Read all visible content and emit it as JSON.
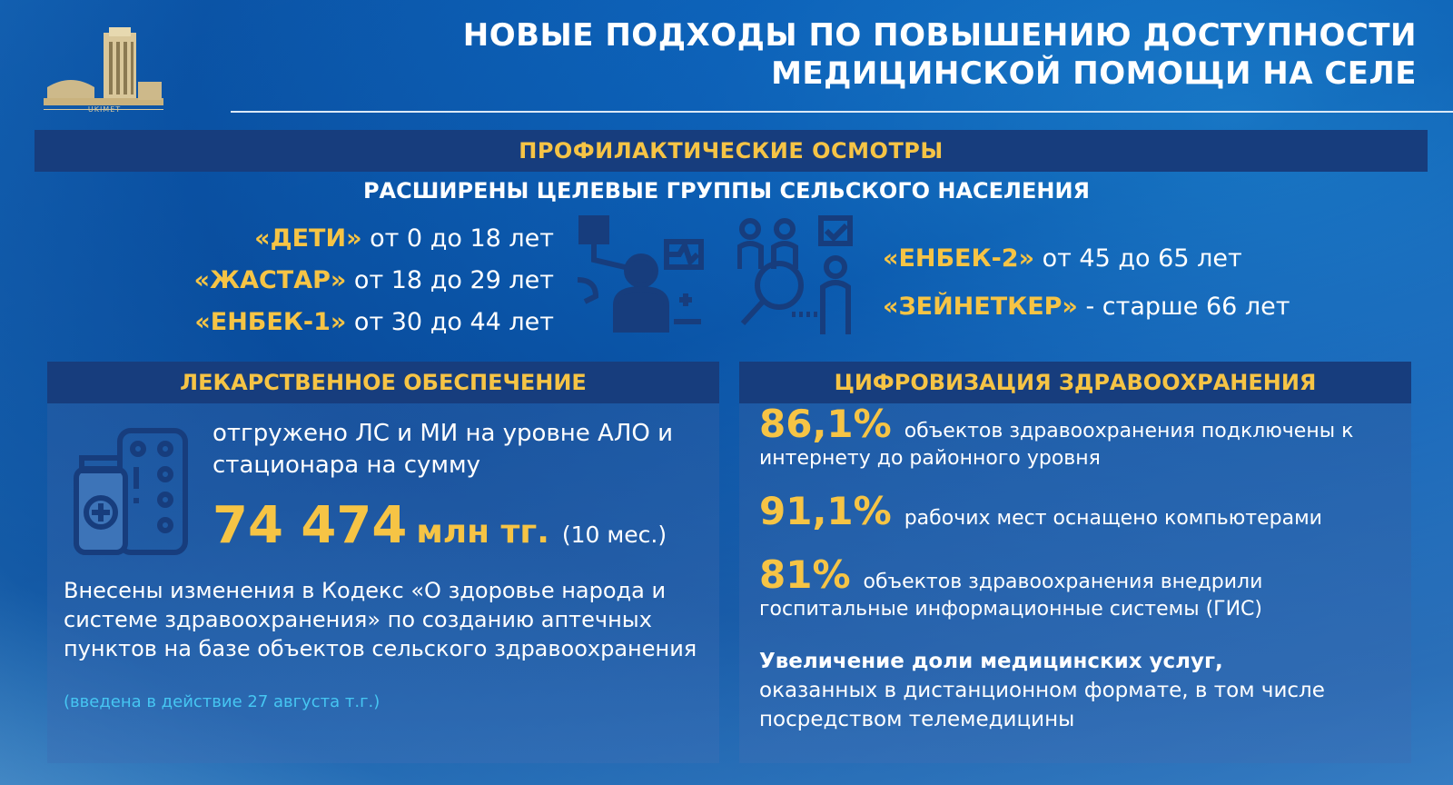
{
  "logo": {
    "caption": "UKIMET"
  },
  "title": {
    "line1": "НОВЫЕ ПОДХОДЫ ПО ПОВЫШЕНИЮ ДОСТУПНОСТИ",
    "line2": "МЕДИЦИНСКОЙ ПОМОЩИ НА СЕЛЕ"
  },
  "checkups": {
    "band": "ПРОФИЛАКТИЧЕСКИЕ ОСМОТРЫ",
    "subhead": "РАСШИРЕНЫ ЦЕЛЕВЫЕ ГРУППЫ СЕЛЬСКОГО НАСЕЛЕНИЯ",
    "groups_left": [
      {
        "name": "«ДЕТИ»",
        "range": " от 0 до 18 лет"
      },
      {
        "name": "«ЖАСТАР»",
        "range": " от 18 до 29 лет"
      },
      {
        "name": "«ЕНБЕК-1»",
        "range": " от 30 до 44 лет"
      }
    ],
    "groups_right": [
      {
        "name": "«ЕНБЕК-2»",
        "range": " от 45 до 65 лет"
      },
      {
        "name": "«ЗЕЙНЕТКЕР»",
        "range": " - старше 66 лет"
      }
    ]
  },
  "drugs": {
    "header": "ЛЕКАРСТВЕННОЕ ОБЕСПЕЧЕНИЕ",
    "shipped_text": "отгружено ЛС и МИ на уровне АЛО и стационара на сумму",
    "amount": "74 474",
    "amount_unit": "млн тг.",
    "period": "(10 мес.)",
    "code_text": "Внесены изменения в Кодекс «О здоровье народа и системе здравоохранения» по созданию аптечных пунктов на базе объектов сельского здравоохранения",
    "code_note": "(введена в действие 27 августа т.г.)"
  },
  "digital": {
    "header": "ЦИФРОВИЗАЦИЯ ЗДРАВООХРАНЕНИЯ",
    "stats": [
      {
        "value": "86,1%",
        "text": "объектов здравоохранения подключены к интернету до районного уровня"
      },
      {
        "value": "91,1%",
        "text": "рабочих мест оснащено компьютерами"
      },
      {
        "value": "81%",
        "text": "объектов здравоохранения внедрили госпитальные информационные системы (ГИС)"
      }
    ],
    "telemed_bold": "Увеличение доли медицинских услуг,",
    "telemed_text": "оказанных в дистанционном формате, в том числе посредством телемедицины"
  },
  "colors": {
    "accent": "#f6c445",
    "band": "#173d7d",
    "note": "#46c6f2",
    "icon": "#173d7d"
  }
}
